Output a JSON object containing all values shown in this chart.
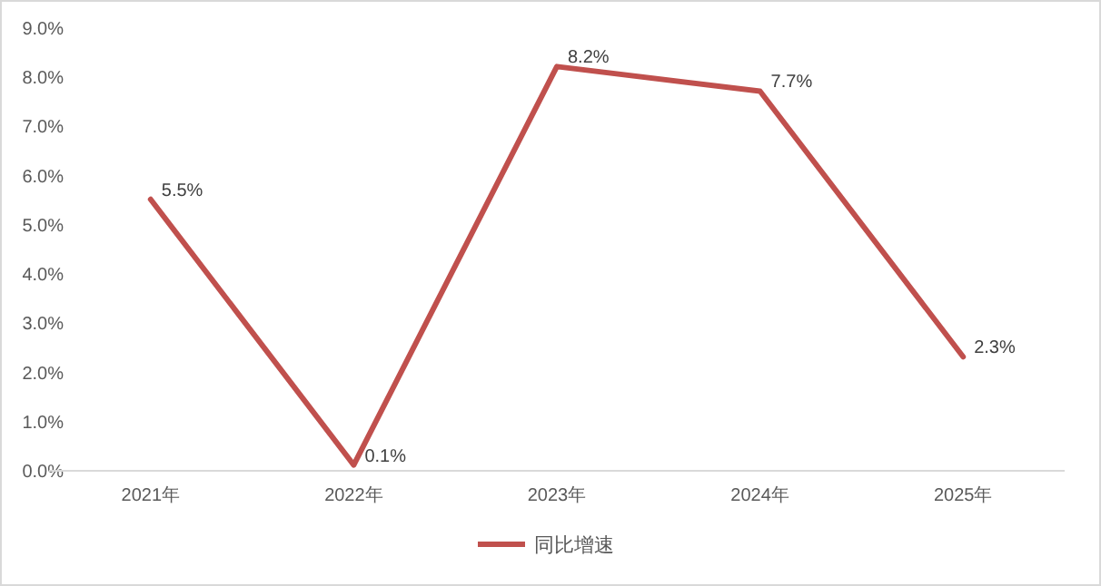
{
  "chart_data": {
    "type": "line",
    "categories": [
      "2021年",
      "2022年",
      "2023年",
      "2024年",
      "2025年"
    ],
    "series": [
      {
        "name": "同比增速",
        "color": "#c0504d",
        "values": [
          5.5,
          0.1,
          8.2,
          7.7,
          2.3
        ],
        "value_labels": [
          "5.5%",
          "0.1%",
          "8.2%",
          "7.7%",
          "2.3%"
        ]
      }
    ],
    "ylim": [
      0,
      9
    ],
    "yticks": [
      {
        "value": 0,
        "label": "0.0%"
      },
      {
        "value": 1,
        "label": "1.0%"
      },
      {
        "value": 2,
        "label": "2.0%"
      },
      {
        "value": 3,
        "label": "3.0%"
      },
      {
        "value": 4,
        "label": "4.0%"
      },
      {
        "value": 5,
        "label": "5.0%"
      },
      {
        "value": 6,
        "label": "6.0%"
      },
      {
        "value": 7,
        "label": "7.0%"
      },
      {
        "value": 8,
        "label": "8.0%"
      },
      {
        "value": 9,
        "label": "9.0%"
      }
    ],
    "grid": false,
    "legend": "bottom",
    "marker": "none",
    "line_style": "solid"
  }
}
